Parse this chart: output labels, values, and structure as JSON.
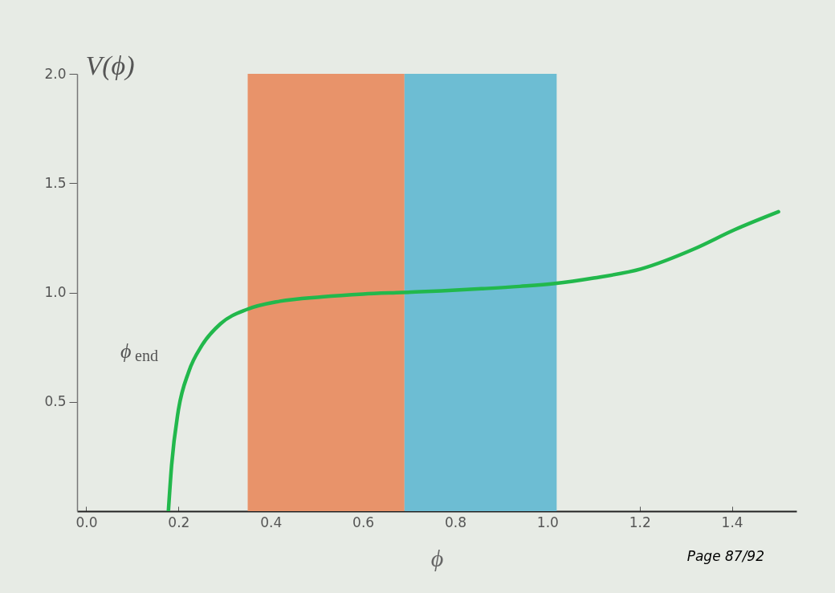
{
  "chart_data": {
    "type": "line",
    "xlabel": "ϕ",
    "ylabel": "V(ϕ)",
    "x": [
      0.178,
      0.185,
      0.199,
      0.222,
      0.251,
      0.291,
      0.349,
      0.42,
      0.51,
      0.6,
      0.684,
      0.77,
      0.857,
      0.94,
      1.016,
      1.1,
      1.203,
      1.319,
      1.405,
      1.501
    ],
    "series": [
      {
        "color": "#22b84c",
        "values": [
          0,
          0.21,
          0.453,
          0.637,
          0.759,
          0.857,
          0.923,
          0.96,
          0.98,
          0.993,
          1.0,
          1.007,
          1.017,
          1.028,
          1.041,
          1.066,
          1.108,
          1.2,
          1.286,
          1.369
        ]
      }
    ],
    "xlim": [
      -0.02,
      1.54
    ],
    "ylim": [
      0,
      2
    ],
    "xticks": [
      {
        "value": 0,
        "label": "0.0"
      },
      0.2,
      0.4,
      0.6,
      0.8,
      {
        "value": 1,
        "label": "1.0"
      },
      1.2,
      1.4
    ],
    "yticks": [
      0.5,
      {
        "value": 1,
        "label": "1.0"
      },
      1.5,
      {
        "value": 2,
        "label": "2.0"
      }
    ],
    "bands": [
      {
        "axis": "x",
        "from": 0.35,
        "to": 0.69,
        "color": "#e8936a"
      },
      {
        "axis": "x",
        "from": 0.69,
        "to": 1.02,
        "color": "#6dbdd3"
      }
    ],
    "annotations": [
      "ϕ$_{end}$",
      "Page 87/92"
    ],
    "grid": false,
    "line_style": "solid"
  }
}
